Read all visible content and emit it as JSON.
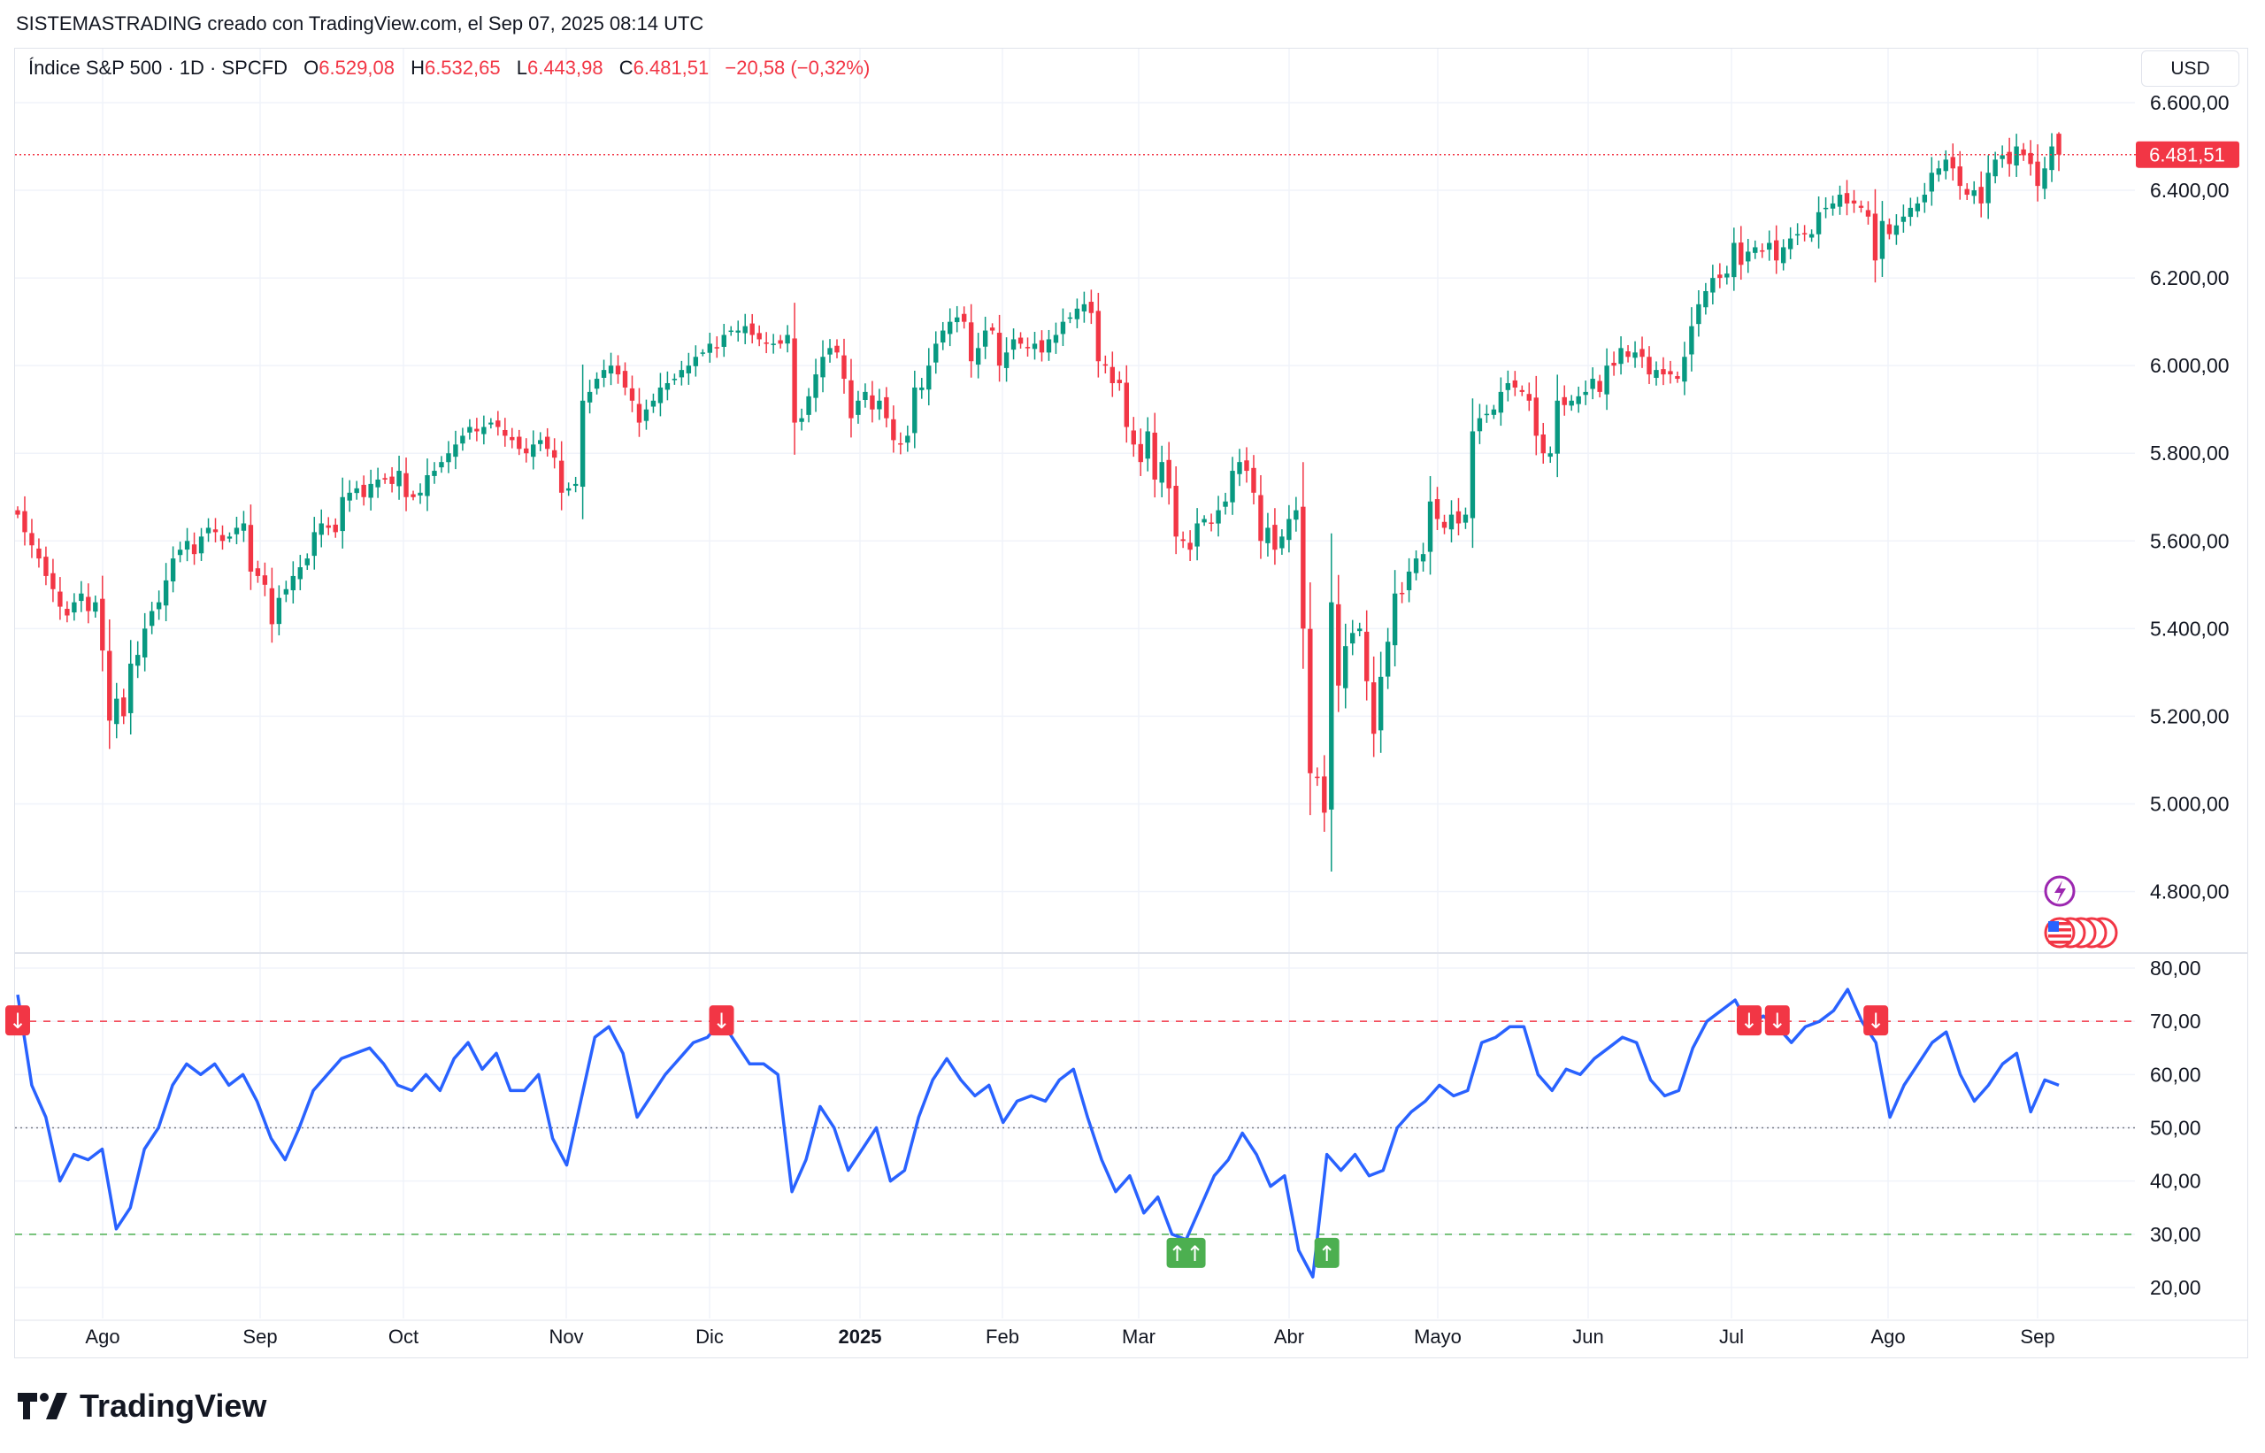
{
  "credit": "SISTEMASTRADING creado con TradingView.com, el Sep 07, 2025 08:14 UTC",
  "legend": {
    "symbol": "Índice S&P 500 · 1D · SPCFD",
    "open_label": "O",
    "open": "6.529,08",
    "high_label": "H",
    "high": "6.532,65",
    "low_label": "L",
    "low": "6.443,98",
    "close_label": "C",
    "close": "6.481,51",
    "change": "−20,58 (−0,32%)"
  },
  "currency_button": "USD",
  "last_price_tag": "6.481,51",
  "logo_text": "TradingView",
  "colors": {
    "up": "#089981",
    "down": "#F23645",
    "rsi": "#2962FF",
    "overbought": "#F23645",
    "oversold": "#4CAF50",
    "midline": "#787B86",
    "event_purple": "#9C27B0"
  },
  "chart_data": [
    {
      "type": "candlestick",
      "title": "Índice S&P 500 · 1D · SPCFD",
      "ylim": [
        4750,
        6650
      ],
      "grid": true,
      "y_ticks": [
        6600,
        6400,
        6200,
        6000,
        5800,
        5600,
        5400,
        5200,
        5000,
        4800
      ],
      "y_tick_labels": [
        "6.600,00",
        "6.400,00",
        "6.200,00",
        "6.000,00",
        "5.800,00",
        "5.600,00",
        "5.400,00",
        "5.200,00",
        "5.000,00",
        "4.800,00"
      ],
      "x_tick_labels": [
        "Ago",
        "Sep",
        "Oct",
        "Nov",
        "Dic",
        "2025",
        "Feb",
        "Mar",
        "Abr",
        "Mayo",
        "Jun",
        "Jul",
        "Ago",
        "Sep"
      ],
      "last_bar": {
        "open": 6529.08,
        "high": 6532.65,
        "low": 6443.98,
        "close": 6481.51
      },
      "closes": [
        5660,
        5620,
        5590,
        5560,
        5520,
        5490,
        5450,
        5430,
        5460,
        5480,
        5440,
        5460,
        5350,
        5190,
        5240,
        5200,
        5320,
        5340,
        5400,
        5440,
        5460,
        5510,
        5560,
        5580,
        5600,
        5570,
        5610,
        5630,
        5620,
        5600,
        5610,
        5630,
        5640,
        5530,
        5520,
        5500,
        5410,
        5470,
        5490,
        5520,
        5540,
        5560,
        5620,
        5640,
        5630,
        5620,
        5700,
        5710,
        5720,
        5700,
        5730,
        5740,
        5740,
        5730,
        5760,
        5700,
        5700,
        5710,
        5750,
        5760,
        5780,
        5800,
        5820,
        5840,
        5860,
        5850,
        5860,
        5870,
        5860,
        5840,
        5830,
        5810,
        5800,
        5820,
        5830,
        5810,
        5790,
        5710,
        5720,
        5730,
        5920,
        5940,
        5970,
        5990,
        6000,
        5980,
        5950,
        5920,
        5870,
        5900,
        5920,
        5950,
        5960,
        5970,
        5990,
        6000,
        6020,
        6030,
        6050,
        6040,
        6070,
        6080,
        6080,
        6090,
        6070,
        6060,
        6050,
        6050,
        6050,
        6070,
        5870,
        5880,
        5930,
        5980,
        6020,
        6040,
        6030,
        5970,
        5880,
        5920,
        5940,
        5900,
        5920,
        5880,
        5830,
        5820,
        5840,
        5950,
        5950,
        6000,
        6050,
        6080,
        6100,
        6110,
        6100,
        6010,
        6040,
        6080,
        6080,
        6000,
        6030,
        6060,
        6050,
        6040,
        6050,
        6030,
        6060,
        6070,
        6100,
        6110,
        6130,
        6140,
        6120,
        6010,
        6000,
        5960,
        5960,
        5860,
        5820,
        5780,
        5850,
        5740,
        5780,
        5720,
        5610,
        5600,
        5580,
        5640,
        5650,
        5640,
        5670,
        5690,
        5760,
        5780,
        5760,
        5710,
        5600,
        5630,
        5580,
        5610,
        5650,
        5670,
        5400,
        5070,
        5060,
        4980,
        5460,
        5270,
        5360,
        5390,
        5400,
        5280,
        5160,
        5290,
        5370,
        5480,
        5480,
        5530,
        5560,
        5570,
        5690,
        5650,
        5630,
        5660,
        5640,
        5660,
        5850,
        5880,
        5890,
        5900,
        5940,
        5960,
        5950,
        5940,
        5920,
        5840,
        5800,
        5800,
        5920,
        5910,
        5920,
        5930,
        5940,
        5970,
        5940,
        6000,
        6000,
        6040,
        6020,
        6030,
        6020,
        5980,
        5990,
        5980,
        5980,
        5970,
        6020,
        6090,
        6140,
        6170,
        6200,
        6200,
        6210,
        6280,
        6230,
        6260,
        6270,
        6260,
        6280,
        6240,
        6270,
        6290,
        6300,
        6300,
        6300,
        6350,
        6360,
        6370,
        6390,
        6370,
        6370,
        6360,
        6340,
        6240,
        6330,
        6300,
        6320,
        6340,
        6360,
        6370,
        6390,
        6440,
        6450,
        6470,
        6450,
        6410,
        6390,
        6400,
        6370,
        6440,
        6470,
        6480,
        6460,
        6500,
        6480,
        6460,
        6410,
        6450,
        6500,
        6481.51
      ]
    },
    {
      "type": "line",
      "ylim": [
        15,
        82
      ],
      "y_ticks": [
        80,
        70,
        60,
        50,
        40,
        30,
        20
      ],
      "y_tick_labels": [
        "80,00",
        "70,00",
        "60,00",
        "50,00",
        "40,00",
        "30,00",
        "20,00"
      ],
      "levels": {
        "upper": 70,
        "middle": 50,
        "lower": 30
      },
      "values": [
        75,
        58,
        52,
        40,
        45,
        44,
        46,
        31,
        35,
        46,
        50,
        58,
        62,
        60,
        62,
        58,
        60,
        55,
        48,
        44,
        50,
        57,
        60,
        63,
        64,
        65,
        62,
        58,
        57,
        60,
        57,
        63,
        66,
        61,
        64,
        57,
        57,
        60,
        48,
        43,
        55,
        67,
        69,
        64,
        52,
        56,
        60,
        63,
        66,
        67,
        70,
        66,
        62,
        62,
        60,
        38,
        44,
        54,
        50,
        42,
        46,
        50,
        40,
        42,
        52,
        59,
        63,
        59,
        56,
        58,
        51,
        55,
        56,
        55,
        59,
        61,
        52,
        44,
        38,
        41,
        34,
        37,
        30,
        29,
        35,
        41,
        44,
        49,
        45,
        39,
        41,
        27,
        22,
        45,
        42,
        45,
        41,
        42,
        50,
        53,
        55,
        58,
        56,
        57,
        66,
        67,
        69,
        69,
        60,
        57,
        61,
        60,
        63,
        65,
        67,
        66,
        59,
        56,
        57,
        65,
        70,
        72,
        74,
        69,
        71,
        69,
        66,
        69,
        70,
        72,
        76,
        70,
        66,
        52,
        58,
        62,
        66,
        68,
        60,
        55,
        58,
        62,
        64,
        53,
        59,
        58
      ],
      "signals": [
        {
          "index": 0,
          "direction": "down",
          "label": "↓"
        },
        {
          "index": 50,
          "direction": "down",
          "label": "↓"
        },
        {
          "index": 83,
          "direction": "up",
          "label": "↑↑"
        },
        {
          "index": 93,
          "direction": "up",
          "label": "↑"
        },
        {
          "index": 123,
          "direction": "down",
          "label": "↓"
        },
        {
          "index": 125,
          "direction": "down",
          "label": "↓"
        },
        {
          "index": 132,
          "direction": "down",
          "label": "↓"
        }
      ]
    }
  ]
}
